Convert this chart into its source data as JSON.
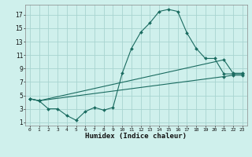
{
  "bg_color": "#cff0ec",
  "line_color": "#1a6b60",
  "grid_color": "#a8d4d0",
  "xlabel": "Humidex (Indice chaleur)",
  "xlim": [
    -0.5,
    23.5
  ],
  "ylim": [
    0.5,
    18.5
  ],
  "yticks": [
    1,
    3,
    5,
    7,
    9,
    11,
    13,
    15,
    17
  ],
  "xticks": [
    0,
    1,
    2,
    3,
    4,
    5,
    6,
    7,
    8,
    9,
    10,
    11,
    12,
    13,
    14,
    15,
    16,
    17,
    18,
    19,
    20,
    21,
    22,
    23
  ],
  "line1_x": [
    0,
    1,
    2,
    3,
    4,
    5,
    6,
    7,
    8,
    9,
    10,
    11,
    12,
    13,
    14,
    15,
    16,
    17,
    18,
    19,
    20,
    21,
    22,
    23
  ],
  "line1_y": [
    4.5,
    4.2,
    3.0,
    3.0,
    2.0,
    1.3,
    2.6,
    3.2,
    2.8,
    3.2,
    8.3,
    12.0,
    14.4,
    15.8,
    17.5,
    17.8,
    17.5,
    14.3,
    12.0,
    10.5,
    10.5,
    8.2,
    8.2,
    8.2
  ],
  "line2_x": [
    0,
    1,
    21,
    22,
    23
  ],
  "line2_y": [
    4.5,
    4.2,
    10.3,
    8.3,
    8.3
  ],
  "line3_x": [
    0,
    1,
    21,
    22,
    23
  ],
  "line3_y": [
    4.5,
    4.2,
    7.8,
    8.0,
    8.0
  ]
}
